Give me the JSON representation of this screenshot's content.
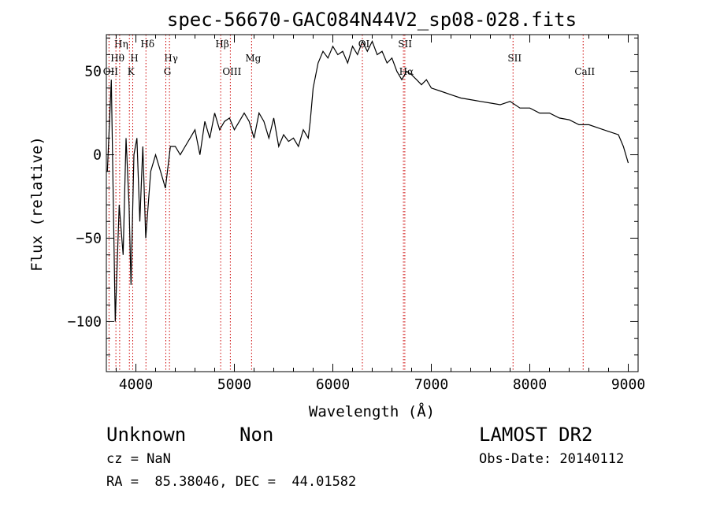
{
  "chart_data": {
    "type": "line",
    "title": "spec-56670-GAC084N44V2_sp08-028.fits",
    "xlabel": "Wavelength (Å)",
    "ylabel": "Flux (relative)",
    "xlim": [
      3700,
      9100
    ],
    "ylim": [
      -130,
      72
    ],
    "x_ticks": [
      4000,
      5000,
      6000,
      7000,
      8000,
      9000
    ],
    "y_ticks": [
      -100,
      -50,
      0,
      50
    ],
    "grid": false,
    "line_color": "#000000",
    "marker_color": "#cc0000",
    "series": [
      {
        "x": [
          3710,
          3750,
          3790,
          3830,
          3870,
          3900,
          3930,
          3950,
          3980,
          4010,
          4040,
          4070,
          4100,
          4150,
          4200,
          4250,
          4300,
          4350,
          4400,
          4450,
          4500,
          4550,
          4600,
          4650,
          4700,
          4750,
          4800,
          4850,
          4900,
          4950,
          5000,
          5050,
          5100,
          5150,
          5200,
          5250,
          5300,
          5350,
          5400,
          5450,
          5500,
          5550,
          5600,
          5650,
          5700,
          5750,
          5770,
          5800,
          5850,
          5900,
          5950,
          6000,
          6050,
          6100,
          6150,
          6200,
          6250,
          6300,
          6350,
          6400,
          6450,
          6500,
          6550,
          6600,
          6650,
          6700,
          6750,
          6800,
          6850,
          6900,
          6950,
          7000,
          7100,
          7200,
          7300,
          7400,
          7500,
          7600,
          7700,
          7800,
          7900,
          8000,
          8100,
          8200,
          8300,
          8400,
          8500,
          8600,
          8700,
          8800,
          8900,
          8950,
          9000
        ],
        "y": [
          -10,
          45,
          -100,
          -30,
          -60,
          10,
          -30,
          -78,
          0,
          10,
          -40,
          5,
          -50,
          -10,
          0,
          -10,
          -20,
          5,
          5,
          0,
          5,
          10,
          15,
          0,
          20,
          10,
          25,
          15,
          20,
          22,
          15,
          20,
          25,
          20,
          10,
          25,
          20,
          10,
          22,
          5,
          12,
          8,
          10,
          5,
          15,
          10,
          20,
          40,
          55,
          62,
          58,
          65,
          60,
          62,
          55,
          65,
          60,
          68,
          62,
          68,
          60,
          62,
          55,
          58,
          50,
          45,
          50,
          48,
          45,
          42,
          45,
          40,
          38,
          36,
          34,
          33,
          32,
          31,
          30,
          32,
          28,
          28,
          25,
          25,
          22,
          21,
          18,
          18,
          16,
          14,
          12,
          5,
          -5
        ]
      }
    ],
    "line_markers": [
      {
        "label": "Hη",
        "x": 3835,
        "row": 1
      },
      {
        "label": "Hθ",
        "x": 3797,
        "row": 2
      },
      {
        "label": "OII",
        "x": 3727,
        "row": 3
      },
      {
        "label": "Hδ",
        "x": 4102,
        "row": 1
      },
      {
        "label": "H",
        "x": 3968,
        "row": 2
      },
      {
        "label": "K",
        "x": 3934,
        "row": 3
      },
      {
        "label": "Hγ",
        "x": 4341,
        "row": 2
      },
      {
        "label": "G",
        "x": 4304,
        "row": 3
      },
      {
        "label": "Hβ",
        "x": 4861,
        "row": 1
      },
      {
        "label": "Mg",
        "x": 5175,
        "row": 2
      },
      {
        "label": "OIII",
        "x": 4959,
        "row": 3
      },
      {
        "label": "OI",
        "x": 6300,
        "row": 1
      },
      {
        "label": "SII",
        "x": 6717,
        "row": 1
      },
      {
        "label": "Hα",
        "x": 6731,
        "row": 3
      },
      {
        "label": "SII",
        "x": 7830,
        "row": 2
      },
      {
        "label": "CaII",
        "x": 8542,
        "row": 3
      }
    ]
  },
  "footer": {
    "class_label": "Unknown",
    "subclass_label": "Non",
    "redshift": "cz = NaN",
    "coords": "RA =  85.38046, DEC =  44.01582",
    "survey": "LAMOST DR2",
    "obs_date": "Obs-Date: 20140112"
  }
}
